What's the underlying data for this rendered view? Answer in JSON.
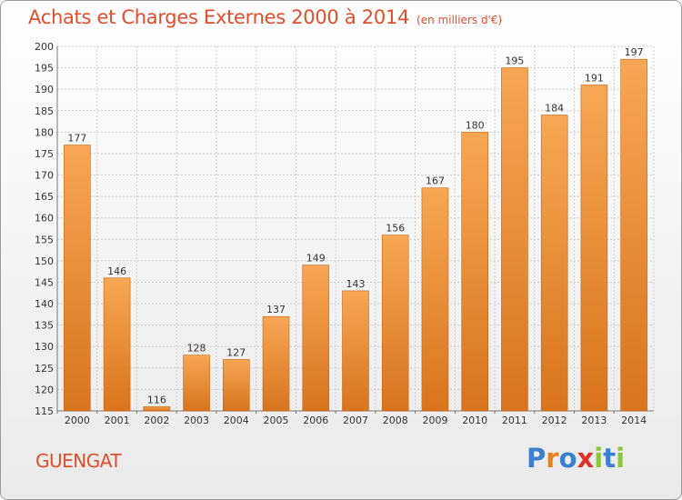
{
  "header": {
    "title": "Achats et Charges Externes 2000 à 2014",
    "subtitle": "(en milliers d'€)"
  },
  "footer": {
    "city": "GUENGAT",
    "logo_letters": [
      "P",
      "r",
      "o",
      "x",
      "i",
      "t",
      "i"
    ],
    "logo_colors": [
      "#3b7fd0",
      "#e8821f",
      "#3b7fd0",
      "#e0322b",
      "#8cc63e",
      "#3b7fd0",
      "#8cc63e"
    ]
  },
  "colors": {
    "bar_top": "#f7a755",
    "bar_bottom": "#d8741d",
    "bar_edge": "#c86510",
    "grid": "#cccccc",
    "title": "#e04e2b"
  },
  "chart_data": {
    "type": "bar",
    "categories": [
      "2000",
      "2001",
      "2002",
      "2003",
      "2004",
      "2005",
      "2006",
      "2007",
      "2008",
      "2009",
      "2010",
      "2011",
      "2012",
      "2013",
      "2014"
    ],
    "values": [
      177,
      146,
      116,
      128,
      127,
      137,
      149,
      143,
      156,
      167,
      180,
      195,
      184,
      191,
      197
    ],
    "ylim": [
      115,
      200
    ],
    "yticks": [
      115,
      120,
      125,
      130,
      135,
      140,
      145,
      150,
      155,
      160,
      165,
      170,
      175,
      180,
      185,
      190,
      195,
      200
    ],
    "grid": true,
    "data_labels": true
  }
}
